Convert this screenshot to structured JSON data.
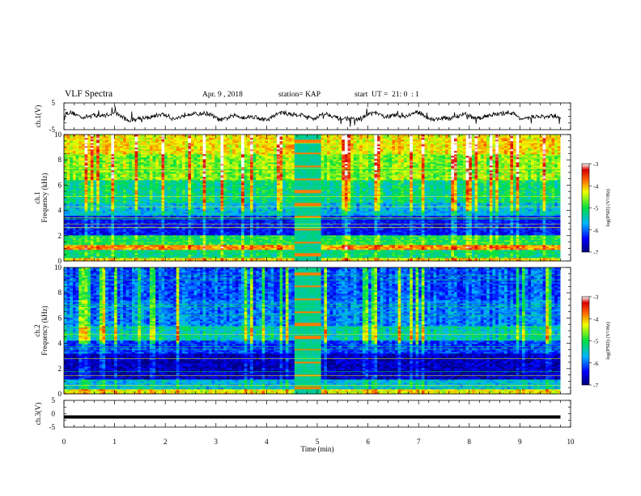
{
  "header": {
    "title": "VLF Spectra",
    "date": "Apr. 9 , 2018",
    "station": "station= KAP",
    "start": "start  UT =  21: 0  : 1"
  },
  "chart_data": [
    {
      "type": "line",
      "panel": "ch1-waveform",
      "ylabel": "ch.1(V)",
      "ylim": [
        -5,
        5
      ],
      "yticks": [
        "5",
        "-5"
      ],
      "xlim": [
        0,
        10
      ],
      "series": [
        {
          "color": "#000000",
          "approx_level": 0,
          "approx_amplitude": 1.5
        }
      ]
    },
    {
      "type": "heatmap",
      "panel": "ch1-spectrogram",
      "ylabel_lines": [
        "ch.1",
        "Frequency (kHz)"
      ],
      "ylim": [
        0,
        10
      ],
      "yticks": [
        "0",
        "2",
        "4",
        "6",
        "8",
        "10"
      ],
      "xlim": [
        0,
        10
      ],
      "data_end_min": 9.8,
      "colorbar": {
        "label": "log(PSD) (V²/Hz)",
        "range": [
          -7,
          -3
        ],
        "ticks": [
          "-3",
          "-4",
          "-5",
          "-6",
          "-7"
        ]
      },
      "calibration_segment_min": [
        4.55,
        5.05
      ],
      "band_levels": [
        {
          "f": [
            0,
            0.3
          ],
          "level": -4.2
        },
        {
          "f": [
            0.3,
            0.9
          ],
          "level": -5.2
        },
        {
          "f": [
            0.9,
            1.3
          ],
          "level": -3.9
        },
        {
          "f": [
            1.3,
            2.1
          ],
          "level": -5.0
        },
        {
          "f": [
            2.1,
            3.6
          ],
          "level": -6.4
        },
        {
          "f": [
            3.6,
            4.6
          ],
          "level": -5.6
        },
        {
          "f": [
            4.6,
            6.4
          ],
          "level": -5.2
        },
        {
          "f": [
            6.4,
            8.4
          ],
          "level": -4.6
        },
        {
          "f": [
            8.4,
            10
          ],
          "level": -4.2
        }
      ]
    },
    {
      "type": "heatmap",
      "panel": "ch2-spectrogram",
      "ylabel_lines": [
        "ch.2",
        "Frequency (kHz)"
      ],
      "ylim": [
        0,
        10
      ],
      "yticks": [
        "0",
        "2",
        "4",
        "6",
        "8",
        "10"
      ],
      "xlim": [
        0,
        10
      ],
      "data_end_min": 9.8,
      "colorbar": {
        "label": "log(PSD) (V²/Hz)",
        "range": [
          -7,
          -3
        ],
        "ticks": [
          "-3",
          "-4",
          "-5",
          "-6",
          "-7"
        ]
      },
      "calibration_segment_min": [
        4.55,
        5.05
      ],
      "band_levels": [
        {
          "f": [
            0,
            0.4
          ],
          "level": -4.3
        },
        {
          "f": [
            0.4,
            1.2
          ],
          "level": -5.6
        },
        {
          "f": [
            1.2,
            3.2
          ],
          "level": -6.7
        },
        {
          "f": [
            3.2,
            4.2
          ],
          "level": -6.2
        },
        {
          "f": [
            4.2,
            5.4
          ],
          "level": -5.4
        },
        {
          "f": [
            5.4,
            7.4
          ],
          "level": -5.9
        },
        {
          "f": [
            7.4,
            10
          ],
          "level": -6.1
        }
      ]
    },
    {
      "type": "line",
      "panel": "ch3-waveform",
      "ylabel": "ch.3(V)",
      "ylim": [
        -5,
        5
      ],
      "yticks": [
        "5",
        "0",
        "-5"
      ],
      "xlim": [
        0,
        10
      ],
      "series": [
        {
          "color": "#000000",
          "approx_level": 0,
          "approx_amplitude": 0.2
        }
      ]
    }
  ],
  "xaxis": {
    "label": "Time (min)",
    "ticks": [
      "0",
      "1",
      "2",
      "3",
      "4",
      "5",
      "6",
      "7",
      "8",
      "9",
      "10"
    ]
  }
}
